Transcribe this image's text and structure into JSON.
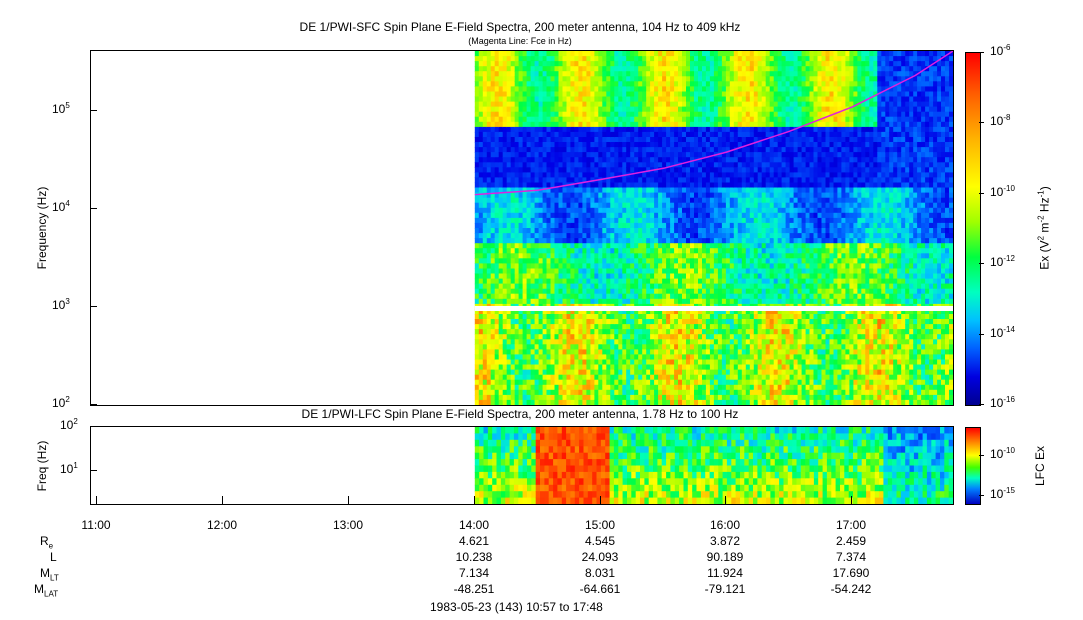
{
  "chart_data": [
    {
      "type": "heatmap",
      "title": "DE 1/PWI-SFC  Spin Plane E-Field Spectra, 200 meter antenna, 104 Hz to 409 kHz",
      "subtitle": "(Magenta Line: Fce in Hz)",
      "ylabel": "Frequency (Hz)",
      "yscale": "log",
      "ylim": [
        100,
        409000
      ],
      "y_ticks": [
        {
          "value": 100,
          "base": "10",
          "exp": "2"
        },
        {
          "value": 1000,
          "base": "10",
          "exp": "3"
        },
        {
          "value": 10000,
          "base": "10",
          "exp": "4"
        },
        {
          "value": 100000,
          "base": "10",
          "exp": "5"
        }
      ],
      "colorbar": {
        "label": "Ex (V² m⁻² Hz⁻¹)",
        "label_parts": {
          "a": "Ex (V",
          "b": "2",
          "c": " m",
          "d": "-2",
          "e": " Hz",
          "f": "-1",
          "g": ")"
        },
        "scale": "log",
        "range": [
          1e-16,
          1e-06
        ],
        "ticks": [
          {
            "value": 1e-06,
            "base": "10",
            "exp": "-6"
          },
          {
            "value": 1e-08,
            "base": "10",
            "exp": "-8"
          },
          {
            "value": 1e-10,
            "base": "10",
            "exp": "-10"
          },
          {
            "value": 1e-12,
            "base": "10",
            "exp": "-12"
          },
          {
            "value": 1e-14,
            "base": "10",
            "exp": "-14"
          },
          {
            "value": 1e-16,
            "base": "10",
            "exp": "-16"
          }
        ]
      },
      "data_start": "14:00",
      "magenta_line_fce": {
        "x": [
          "14:00",
          "14:30",
          "15:00",
          "15:30",
          "16:00",
          "16:30",
          "17:00",
          "17:30",
          "17:48"
        ],
        "y": [
          14000,
          15500,
          20000,
          26000,
          38000,
          62000,
          110000,
          230000,
          409000
        ]
      },
      "colors": {
        "magenta": "#e020e0",
        "background": "#ffffff"
      }
    },
    {
      "type": "heatmap",
      "title": "DE 1/PWI-LFC  Spin Plane E-Field Spectra, 200 meter antenna, 1.78 Hz to 100 Hz",
      "ylabel": "Freq (Hz)",
      "yscale": "log",
      "ylim": [
        1.78,
        100
      ],
      "y_ticks": [
        {
          "value": 10,
          "base": "10",
          "exp": "1"
        },
        {
          "value": 100,
          "base": "10",
          "exp": "2"
        }
      ],
      "colorbar": {
        "label": "LFC Ex",
        "scale": "log",
        "ticks": [
          {
            "value": 1e-10,
            "base": "10",
            "exp": "-10"
          },
          {
            "value": 1e-15,
            "base": "10",
            "exp": "-15"
          }
        ]
      },
      "data_start": "14:00"
    }
  ],
  "x_axis": {
    "range": [
      "10:57",
      "17:48"
    ],
    "tick_labels": [
      "11:00",
      "12:00",
      "13:00",
      "14:00",
      "15:00",
      "16:00",
      "17:00"
    ]
  },
  "ephemeris": {
    "rows": [
      {
        "name": "R",
        "sub": "e",
        "values": [
          "4.621",
          "4.545",
          "3.872",
          "2.459"
        ]
      },
      {
        "name": "L",
        "sub": "",
        "values": [
          "10.238",
          "24.093",
          "90.189",
          "7.374"
        ]
      },
      {
        "name": "M",
        "sub": "LT",
        "values": [
          "7.134",
          "8.031",
          "11.924",
          "17.690"
        ]
      },
      {
        "name": "M",
        "sub": "LAT",
        "values": [
          "-48.251",
          "-64.661",
          "-79.121",
          "-54.242"
        ]
      }
    ],
    "times": [
      "14:00",
      "15:00",
      "16:00",
      "17:00"
    ]
  },
  "footer": "1983-05-23 (143) 10:57 to 17:48"
}
